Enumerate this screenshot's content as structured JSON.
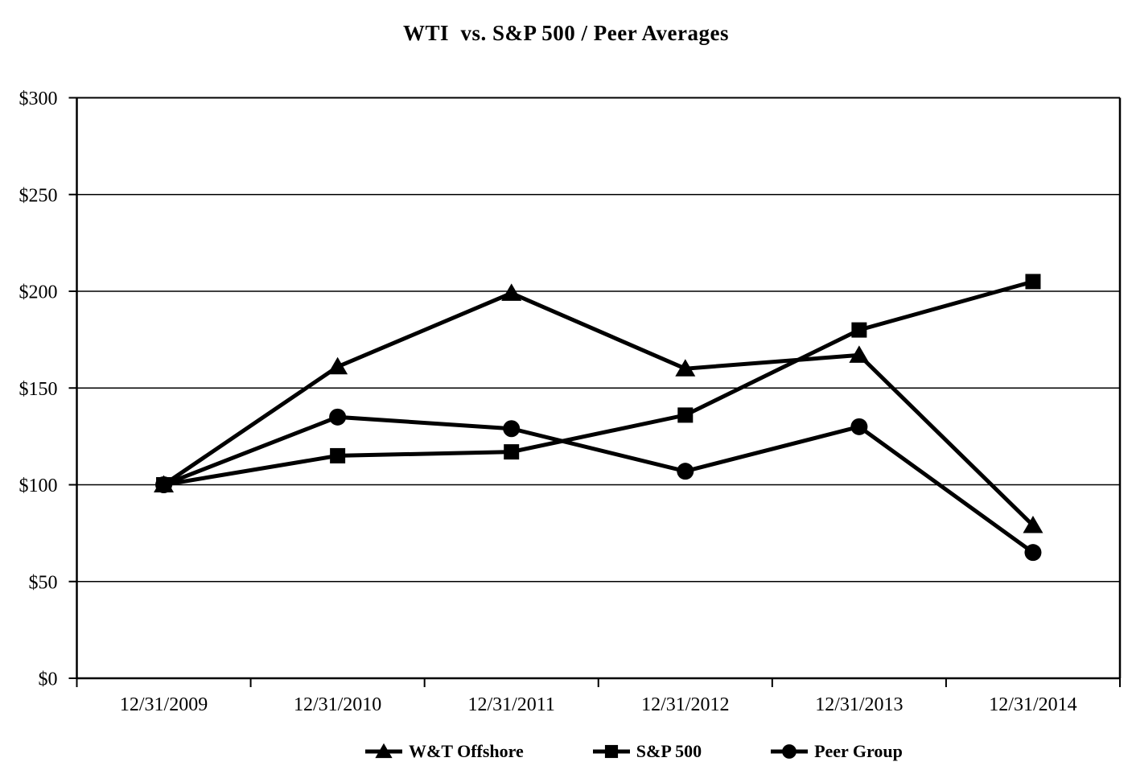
{
  "chart_data": {
    "type": "line",
    "title": "WTI  vs. S&P 500 / Peer Averages",
    "categories": [
      "12/31/2009",
      "12/31/2010",
      "12/31/2011",
      "12/31/2012",
      "12/31/2013",
      "12/31/2014"
    ],
    "series": [
      {
        "name": "W&T Offshore",
        "marker": "triangle",
        "values": [
          100,
          161,
          199,
          160,
          167,
          79
        ]
      },
      {
        "name": "S&P 500",
        "marker": "square",
        "values": [
          100,
          115,
          117,
          136,
          180,
          205
        ]
      },
      {
        "name": "Peer Group",
        "marker": "circle",
        "values": [
          100,
          135,
          129,
          107,
          130,
          65
        ]
      }
    ],
    "y_axis": {
      "min": 0,
      "max": 300,
      "step": 50,
      "tick_labels": [
        "$0",
        "$50",
        "$100",
        "$150",
        "$200",
        "$250",
        "$300"
      ]
    },
    "x_axis": {
      "label": ""
    },
    "grid": "horizontal",
    "legend_position": "bottom",
    "line_color": "#000000",
    "background_color": "#ffffff"
  }
}
